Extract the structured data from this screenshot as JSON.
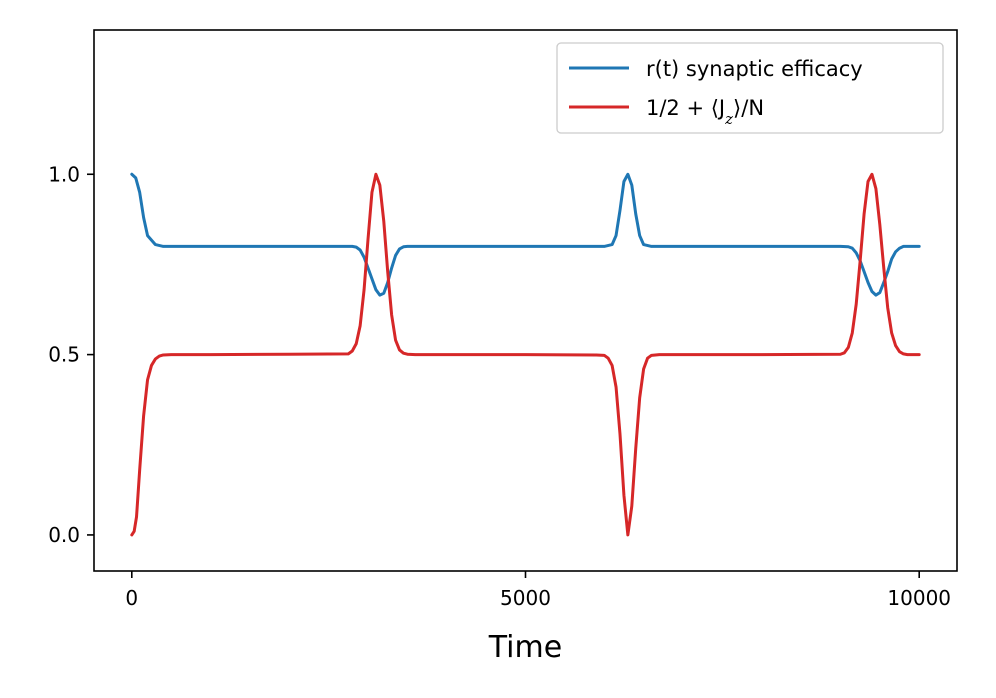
{
  "chart_data": {
    "type": "line",
    "title": "",
    "xlabel": "Time",
    "ylabel": "",
    "xlim": [
      -480,
      10480
    ],
    "ylim": [
      -0.1,
      1.4
    ],
    "x_ticks": [
      0,
      5000,
      10000
    ],
    "x_tick_labels": [
      "0",
      "5000",
      "10000"
    ],
    "y_ticks": [
      0.0,
      0.5,
      1.0
    ],
    "y_tick_labels": [
      "0.0",
      "0.5",
      "1.0"
    ],
    "grid": false,
    "legend_position": "top-right",
    "legend_math_main": "1/2 + ⟨J",
    "legend_math_sub": "z",
    "legend_math_tail": "⟩/N",
    "series": [
      {
        "name": "r(t) synaptic efficacy",
        "color": "#1f77b4",
        "x": [
          0,
          50,
          100,
          150,
          200,
          300,
          400,
          600,
          1000,
          2000,
          2800,
          2850,
          2900,
          2950,
          3000,
          3050,
          3100,
          3150,
          3200,
          3250,
          3300,
          3350,
          3400,
          3450,
          3500,
          3600,
          4000,
          5000,
          6000,
          6100,
          6150,
          6200,
          6250,
          6300,
          6350,
          6400,
          6450,
          6500,
          6600,
          6800,
          7000,
          8000,
          9000,
          9100,
          9150,
          9200,
          9250,
          9300,
          9350,
          9400,
          9450,
          9500,
          9550,
          9600,
          9650,
          9700,
          9750,
          9800,
          9900,
          10000
        ],
        "y": [
          1.0,
          0.99,
          0.95,
          0.88,
          0.83,
          0.805,
          0.8,
          0.8,
          0.8,
          0.8,
          0.8,
          0.798,
          0.79,
          0.77,
          0.74,
          0.71,
          0.68,
          0.665,
          0.67,
          0.7,
          0.74,
          0.775,
          0.793,
          0.799,
          0.8,
          0.8,
          0.8,
          0.8,
          0.8,
          0.805,
          0.83,
          0.9,
          0.98,
          1.0,
          0.97,
          0.89,
          0.83,
          0.805,
          0.8,
          0.8,
          0.8,
          0.8,
          0.8,
          0.799,
          0.795,
          0.782,
          0.76,
          0.73,
          0.7,
          0.675,
          0.665,
          0.672,
          0.7,
          0.73,
          0.765,
          0.785,
          0.795,
          0.8,
          0.8,
          0.8
        ]
      },
      {
        "name": "1/2 + ⟨J_z⟩/N",
        "color": "#d62728",
        "x": [
          0,
          30,
          60,
          100,
          150,
          200,
          250,
          300,
          350,
          400,
          500,
          1000,
          2000,
          2750,
          2800,
          2850,
          2900,
          2950,
          3000,
          3050,
          3100,
          3150,
          3200,
          3250,
          3300,
          3350,
          3400,
          3450,
          3500,
          3600,
          4000,
          5000,
          5900,
          6000,
          6050,
          6100,
          6150,
          6200,
          6250,
          6300,
          6350,
          6400,
          6450,
          6500,
          6550,
          6600,
          6700,
          7000,
          8000,
          9000,
          9050,
          9100,
          9150,
          9200,
          9250,
          9300,
          9350,
          9400,
          9450,
          9500,
          9550,
          9600,
          9650,
          9700,
          9750,
          9800,
          9850,
          9900,
          10000
        ],
        "y": [
          0.0,
          0.01,
          0.05,
          0.18,
          0.33,
          0.43,
          0.47,
          0.488,
          0.496,
          0.499,
          0.5,
          0.5,
          0.501,
          0.502,
          0.51,
          0.53,
          0.58,
          0.68,
          0.82,
          0.95,
          1.0,
          0.97,
          0.87,
          0.73,
          0.61,
          0.54,
          0.513,
          0.504,
          0.501,
          0.5,
          0.5,
          0.5,
          0.499,
          0.498,
          0.49,
          0.47,
          0.41,
          0.28,
          0.11,
          0.0,
          0.08,
          0.24,
          0.38,
          0.46,
          0.49,
          0.498,
          0.5,
          0.5,
          0.5,
          0.501,
          0.505,
          0.52,
          0.56,
          0.64,
          0.76,
          0.89,
          0.98,
          1.0,
          0.96,
          0.86,
          0.74,
          0.63,
          0.56,
          0.525,
          0.508,
          0.502,
          0.5,
          0.5,
          0.5
        ]
      }
    ]
  }
}
